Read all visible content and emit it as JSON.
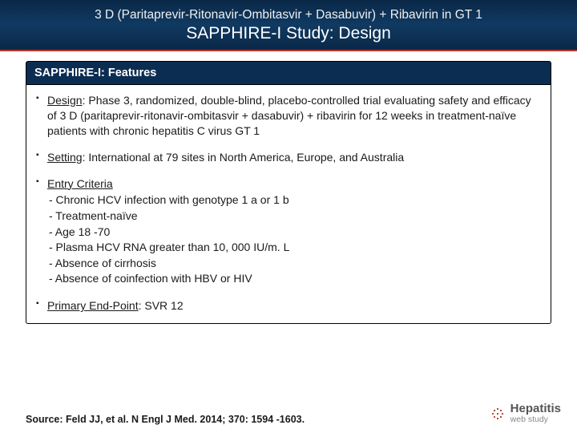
{
  "header": {
    "line1": "3 D (Paritaprevir-Ritonavir-Ombitasvir + Dasabuvir) + Ribavirin in GT 1",
    "line2": "SAPPHIRE-I Study: Design"
  },
  "features": {
    "heading": "SAPPHIRE-I: Features",
    "items": [
      {
        "label": "Design",
        "text": ": Phase 3, randomized, double-blind, placebo-controlled trial evaluating safety and efficacy of 3 D (paritaprevir-ritonavir-ombitasvir + dasabuvir) + ribavirin for 12 weeks in treatment-naïve patients with chronic hepatitis C virus GT 1"
      },
      {
        "label": "Setting",
        "text": ": International at 79 sites in North America, Europe, and Australia"
      },
      {
        "label": "Entry Criteria",
        "text": "",
        "sub": [
          "- Chronic HCV infection with genotype 1 a or 1 b",
          "- Treatment-naïve",
          "- Age 18 -70",
          "- Plasma HCV RNA greater than 10, 000 IU/m. L",
          "- Absence of cirrhosis",
          "- Absence of coinfection with HBV or HIV"
        ]
      },
      {
        "label": "Primary End-Point",
        "text": ": SVR 12"
      }
    ]
  },
  "source": "Source: Feld JJ, et al. N Engl J Med. 2014; 370: 1594 -1603.",
  "brand": {
    "t1": "Hepatitis",
    "t2": "web study"
  },
  "colors": {
    "header_bg_top": "#0a2847",
    "header_bg_mid": "#103a62",
    "accent_rule": "#b8352c",
    "panel_head_bg": "#0c2d52",
    "text": "#1a1a1a",
    "brand_text": "#555555",
    "brand_sub": "#888888"
  }
}
